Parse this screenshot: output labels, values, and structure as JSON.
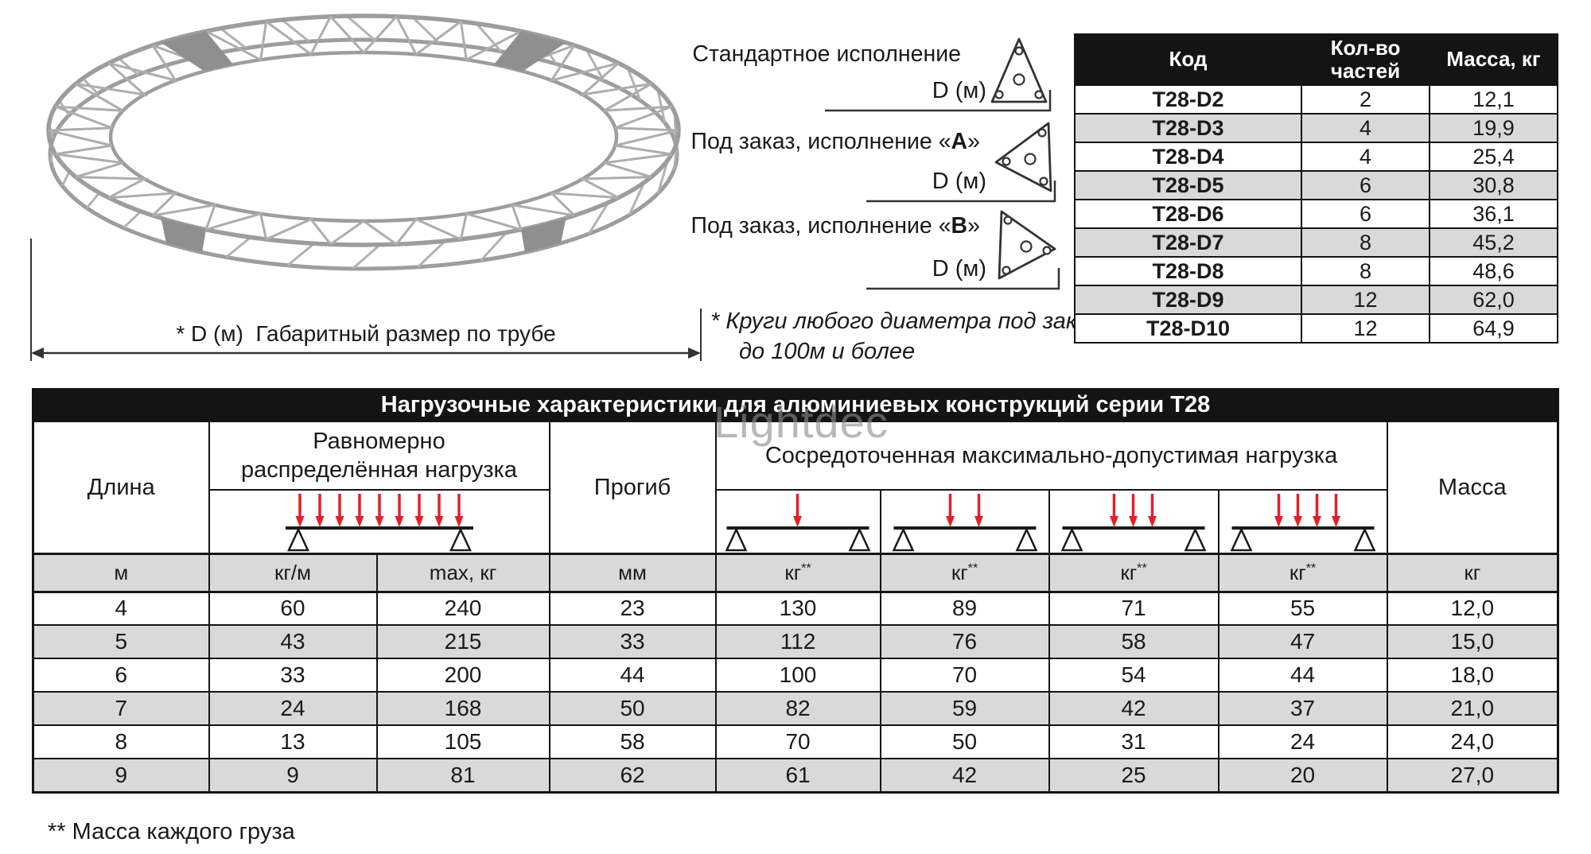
{
  "drawing": {
    "caption": "* D (м)  Габаритный размер по трубе"
  },
  "variants": [
    {
      "label": "Стандартное исполнение",
      "letter": "",
      "suffix": "",
      "dim": "D (м)",
      "icon": "truss-section-triangle-up"
    },
    {
      "label": "Под заказ, исполнение «",
      "letter": "A",
      "suffix": "»",
      "dim": "D (м)",
      "icon": "truss-section-triangle-left"
    },
    {
      "label": "Под заказ, исполнение «",
      "letter": "B",
      "suffix": "»",
      "dim": "D (м)",
      "icon": "truss-section-triangle-right"
    }
  ],
  "note": {
    "line1": "* Круги любого диаметра под заказ",
    "line2": "до 100м и более"
  },
  "parts_table": {
    "headers": [
      "Код",
      "Кол-во частей",
      "Масса, кг"
    ],
    "rows": [
      [
        "T28-D2",
        "2",
        "12,1"
      ],
      [
        "T28-D3",
        "4",
        "19,9"
      ],
      [
        "T28-D4",
        "4",
        "25,4"
      ],
      [
        "T28-D5",
        "6",
        "30,8"
      ],
      [
        "T28-D6",
        "6",
        "36,1"
      ],
      [
        "T28-D7",
        "8",
        "45,2"
      ],
      [
        "T28-D8",
        "8",
        "48,6"
      ],
      [
        "T28-D9",
        "12",
        "62,0"
      ],
      [
        "T28-D10",
        "12",
        "64,9"
      ]
    ]
  },
  "load_table": {
    "title": "Нагрузочные характеристики для алюминиевых конструкций серии Т28",
    "headers": {
      "length": "Длина",
      "uniform1": "Равномерно",
      "uniform2": "распределённая нагрузка",
      "deflection": "Прогиб",
      "concentrated": "Сосредоточенная максимально-допустимая нагрузка",
      "mass": "Масса"
    },
    "units": [
      "м",
      "кг/м",
      "max, кг",
      "мм",
      "кг**",
      "кг**",
      "кг**",
      "кг**",
      "кг"
    ],
    "rows": [
      [
        "4",
        "60",
        "240",
        "23",
        "130",
        "89",
        "71",
        "55",
        "12,0"
      ],
      [
        "5",
        "43",
        "215",
        "33",
        "112",
        "76",
        "58",
        "47",
        "15,0"
      ],
      [
        "6",
        "33",
        "200",
        "44",
        "100",
        "70",
        "54",
        "44",
        "18,0"
      ],
      [
        "7",
        "24",
        "168",
        "50",
        "82",
        "59",
        "42",
        "37",
        "21,0"
      ],
      [
        "8",
        "13",
        "105",
        "58",
        "70",
        "50",
        "31",
        "24",
        "24,0"
      ],
      [
        "9",
        "9",
        "81",
        "62",
        "61",
        "42",
        "25",
        "20",
        "27,0"
      ]
    ],
    "footnote": "** Масса каждого груза"
  },
  "watermark": "Lightdec",
  "colors": {
    "accent_red": "#e2202c",
    "row_gray": "#d9d9d9",
    "header_black": "#141414"
  }
}
